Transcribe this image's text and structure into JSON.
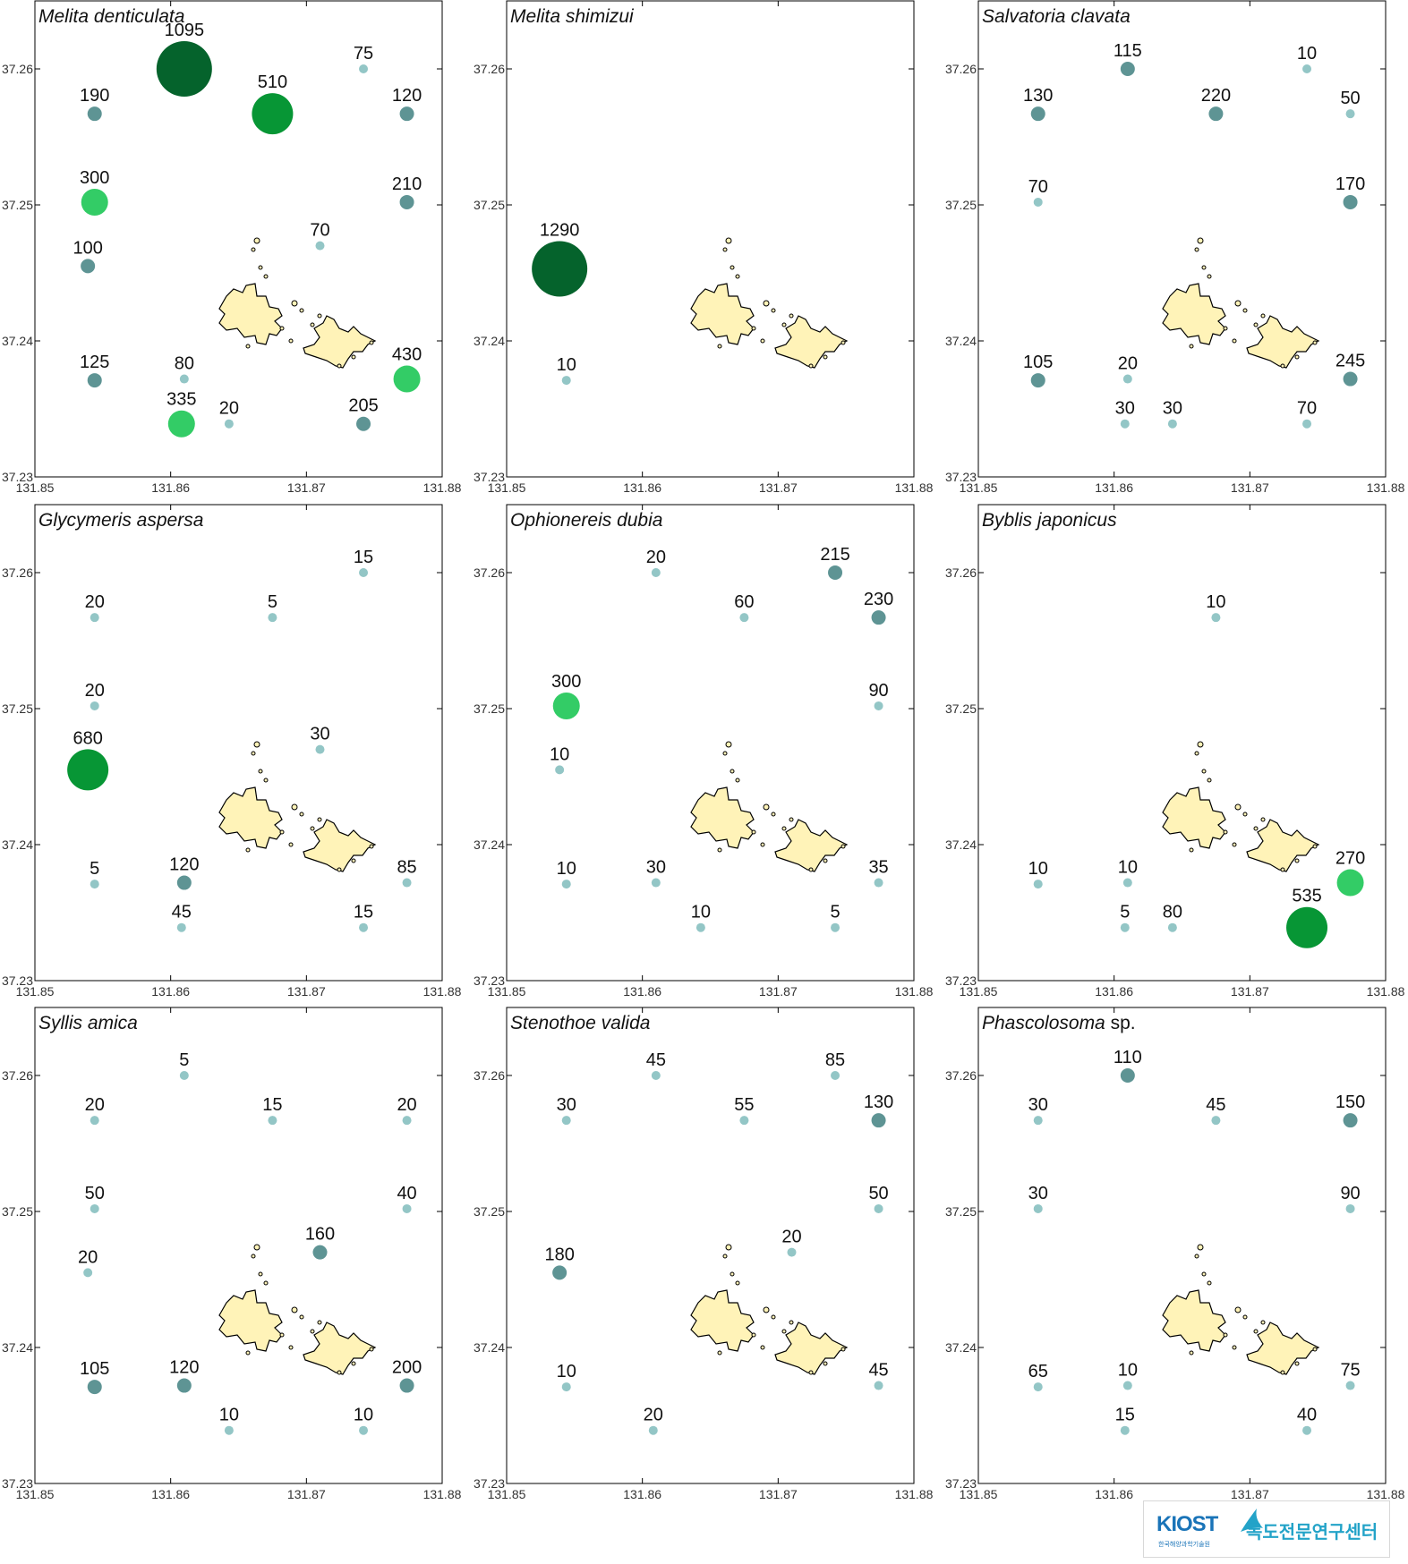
{
  "figure": {
    "colors": {
      "frame": "#000000",
      "island_fill": "#fff3b8",
      "island_stroke": "#000000",
      "size_classes": [
        {
          "min": 0,
          "max": 99,
          "radius": 5,
          "color": "#93c6c6"
        },
        {
          "min": 100,
          "max": 250,
          "radius": 8,
          "color": "#5e9494"
        },
        {
          "min": 251,
          "max": 450,
          "radius": 15,
          "color": "#33cc66"
        },
        {
          "min": 451,
          "max": 800,
          "radius": 23,
          "color": "#079635"
        },
        {
          "min": 801,
          "max": 5000,
          "radius": 31,
          "color": "#05632c"
        }
      ]
    }
  },
  "logo": {
    "name": "KIOST",
    "subtitle": "한국해양과학기술원",
    "korean": "독도전문연구센터",
    "icon": "kiost-wave-icon"
  },
  "chart_data": [
    {
      "type": "scatter",
      "title": "Melita denticulata",
      "xlim": [
        131.85,
        131.88
      ],
      "ylim": [
        37.23,
        37.265
      ],
      "xticks": [
        "131.85",
        "131.86",
        "131.87",
        "131.88"
      ],
      "yticks": [
        "37.23",
        "37.24",
        "37.25",
        "37.26"
      ],
      "points": [
        {
          "x": 131.861,
          "y": 37.26,
          "value": 1095,
          "label": "1095"
        },
        {
          "x": 131.8675,
          "y": 37.2567,
          "value": 510,
          "label": "510"
        },
        {
          "x": 131.8742,
          "y": 37.26,
          "value": 75,
          "label": "75"
        },
        {
          "x": 131.8544,
          "y": 37.2567,
          "value": 190,
          "label": "190"
        },
        {
          "x": 131.8774,
          "y": 37.2567,
          "value": 120,
          "label": "120"
        },
        {
          "x": 131.8544,
          "y": 37.2502,
          "value": 300,
          "label": "300"
        },
        {
          "x": 131.8774,
          "y": 37.2502,
          "value": 210,
          "label": "210"
        },
        {
          "x": 131.871,
          "y": 37.247,
          "value": 70,
          "label": "70"
        },
        {
          "x": 131.8539,
          "y": 37.2455,
          "value": 100,
          "label": "100"
        },
        {
          "x": 131.8544,
          "y": 37.2371,
          "value": 125,
          "label": "125"
        },
        {
          "x": 131.861,
          "y": 37.2372,
          "value": 80,
          "label": "80"
        },
        {
          "x": 131.8774,
          "y": 37.2372,
          "value": 430,
          "label": "430"
        },
        {
          "x": 131.8608,
          "y": 37.2339,
          "value": 335,
          "label": "335"
        },
        {
          "x": 131.8643,
          "y": 37.2339,
          "value": 20,
          "label": "20"
        },
        {
          "x": 131.8742,
          "y": 37.2339,
          "value": 205,
          "label": "205"
        }
      ]
    },
    {
      "type": "scatter",
      "title": "Melita shimizui",
      "xlim": [
        131.85,
        131.88
      ],
      "ylim": [
        37.23,
        37.265
      ],
      "xticks": [
        "131.85",
        "131.86",
        "131.87",
        "131.88"
      ],
      "yticks": [
        "37.23",
        "37.24",
        "37.25",
        "37.26"
      ],
      "points": [
        {
          "x": 131.8539,
          "y": 37.2453,
          "value": 1290,
          "label": "1290"
        },
        {
          "x": 131.8544,
          "y": 37.2371,
          "value": 10,
          "label": "10"
        }
      ]
    },
    {
      "type": "scatter",
      "title": "Salvatoria clavata",
      "xlim": [
        131.85,
        131.88
      ],
      "ylim": [
        37.23,
        37.265
      ],
      "xticks": [
        "131.85",
        "131.86",
        "131.87",
        "131.88"
      ],
      "yticks": [
        "37.23",
        "37.24",
        "37.25",
        "37.26"
      ],
      "points": [
        {
          "x": 131.861,
          "y": 37.26,
          "value": 115,
          "label": "115"
        },
        {
          "x": 131.8742,
          "y": 37.26,
          "value": 10,
          "label": "10"
        },
        {
          "x": 131.8544,
          "y": 37.2567,
          "value": 130,
          "label": "130"
        },
        {
          "x": 131.8675,
          "y": 37.2567,
          "value": 220,
          "label": "220"
        },
        {
          "x": 131.8774,
          "y": 37.2567,
          "value": 50,
          "label": "50"
        },
        {
          "x": 131.8544,
          "y": 37.2502,
          "value": 70,
          "label": "70"
        },
        {
          "x": 131.8774,
          "y": 37.2502,
          "value": 170,
          "label": "170"
        },
        {
          "x": 131.8544,
          "y": 37.2371,
          "value": 105,
          "label": "105"
        },
        {
          "x": 131.861,
          "y": 37.2372,
          "value": 20,
          "label": "20"
        },
        {
          "x": 131.8774,
          "y": 37.2372,
          "value": 245,
          "label": "245"
        },
        {
          "x": 131.8608,
          "y": 37.2339,
          "value": 30,
          "label": "30"
        },
        {
          "x": 131.8643,
          "y": 37.2339,
          "value": 30,
          "label": "30"
        },
        {
          "x": 131.8742,
          "y": 37.2339,
          "value": 70,
          "label": "70"
        }
      ]
    },
    {
      "type": "scatter",
      "title": "Glycymeris aspersa",
      "xlim": [
        131.85,
        131.88
      ],
      "ylim": [
        37.23,
        37.265
      ],
      "xticks": [
        "131.85",
        "131.86",
        "131.87",
        "131.88"
      ],
      "yticks": [
        "37.23",
        "37.24",
        "37.25",
        "37.26"
      ],
      "points": [
        {
          "x": 131.8742,
          "y": 37.26,
          "value": 15,
          "label": "15"
        },
        {
          "x": 131.8544,
          "y": 37.2567,
          "value": 20,
          "label": "20"
        },
        {
          "x": 131.8675,
          "y": 37.2567,
          "value": 5,
          "label": "5"
        },
        {
          "x": 131.8544,
          "y": 37.2502,
          "value": 20,
          "label": "20"
        },
        {
          "x": 131.871,
          "y": 37.247,
          "value": 30,
          "label": "30"
        },
        {
          "x": 131.8539,
          "y": 37.2455,
          "value": 680,
          "label": "680"
        },
        {
          "x": 131.8544,
          "y": 37.2371,
          "value": 5,
          "label": "5"
        },
        {
          "x": 131.861,
          "y": 37.2372,
          "value": 120,
          "label": "120"
        },
        {
          "x": 131.8774,
          "y": 37.2372,
          "value": 85,
          "label": "85"
        },
        {
          "x": 131.8608,
          "y": 37.2339,
          "value": 45,
          "label": "45"
        },
        {
          "x": 131.8742,
          "y": 37.2339,
          "value": 15,
          "label": "15"
        }
      ]
    },
    {
      "type": "scatter",
      "title": "Ophionereis dubia",
      "xlim": [
        131.85,
        131.88
      ],
      "ylim": [
        37.23,
        37.265
      ],
      "xticks": [
        "131.85",
        "131.86",
        "131.87",
        "131.88"
      ],
      "yticks": [
        "37.23",
        "37.24",
        "37.25",
        "37.26"
      ],
      "points": [
        {
          "x": 131.861,
          "y": 37.26,
          "value": 20,
          "label": "20"
        },
        {
          "x": 131.8742,
          "y": 37.26,
          "value": 215,
          "label": "215"
        },
        {
          "x": 131.8675,
          "y": 37.2567,
          "value": 60,
          "label": "60"
        },
        {
          "x": 131.8774,
          "y": 37.2567,
          "value": 230,
          "label": "230"
        },
        {
          "x": 131.8544,
          "y": 37.2502,
          "value": 300,
          "label": "300"
        },
        {
          "x": 131.8774,
          "y": 37.2502,
          "value": 90,
          "label": "90"
        },
        {
          "x": 131.8539,
          "y": 37.2455,
          "value": 10,
          "label": "10"
        },
        {
          "x": 131.8544,
          "y": 37.2371,
          "value": 10,
          "label": "10"
        },
        {
          "x": 131.861,
          "y": 37.2372,
          "value": 30,
          "label": "30"
        },
        {
          "x": 131.8774,
          "y": 37.2372,
          "value": 35,
          "label": "35"
        },
        {
          "x": 131.8643,
          "y": 37.2339,
          "value": 10,
          "label": "10"
        },
        {
          "x": 131.8742,
          "y": 37.2339,
          "value": 5,
          "label": "5"
        }
      ]
    },
    {
      "type": "scatter",
      "title": "Byblis japonicus",
      "xlim": [
        131.85,
        131.88
      ],
      "ylim": [
        37.23,
        37.265
      ],
      "xticks": [
        "131.85",
        "131.86",
        "131.87",
        "131.88"
      ],
      "yticks": [
        "37.23",
        "37.24",
        "37.25",
        "37.26"
      ],
      "points": [
        {
          "x": 131.8675,
          "y": 37.2567,
          "value": 10,
          "label": "10"
        },
        {
          "x": 131.8544,
          "y": 37.2371,
          "value": 10,
          "label": "10"
        },
        {
          "x": 131.861,
          "y": 37.2372,
          "value": 10,
          "label": "10"
        },
        {
          "x": 131.8774,
          "y": 37.2372,
          "value": 270,
          "label": "270"
        },
        {
          "x": 131.8608,
          "y": 37.2339,
          "value": 5,
          "label": "5"
        },
        {
          "x": 131.8643,
          "y": 37.2339,
          "value": 80,
          "label": "80"
        },
        {
          "x": 131.8742,
          "y": 37.2339,
          "value": 535,
          "label": "535"
        }
      ]
    },
    {
      "type": "scatter",
      "title": "Syllis amica",
      "xlim": [
        131.85,
        131.88
      ],
      "ylim": [
        37.23,
        37.265
      ],
      "xticks": [
        "131.85",
        "131.86",
        "131.87",
        "131.88"
      ],
      "yticks": [
        "37.23",
        "37.24",
        "37.25",
        "37.26"
      ],
      "points": [
        {
          "x": 131.861,
          "y": 37.26,
          "value": 5,
          "label": "5"
        },
        {
          "x": 131.8544,
          "y": 37.2567,
          "value": 20,
          "label": "20"
        },
        {
          "x": 131.8675,
          "y": 37.2567,
          "value": 15,
          "label": "15"
        },
        {
          "x": 131.8774,
          "y": 37.2567,
          "value": 20,
          "label": "20"
        },
        {
          "x": 131.8544,
          "y": 37.2502,
          "value": 50,
          "label": "50"
        },
        {
          "x": 131.8774,
          "y": 37.2502,
          "value": 40,
          "label": "40"
        },
        {
          "x": 131.871,
          "y": 37.247,
          "value": 160,
          "label": "160"
        },
        {
          "x": 131.8539,
          "y": 37.2455,
          "value": 20,
          "label": "20"
        },
        {
          "x": 131.8544,
          "y": 37.2371,
          "value": 105,
          "label": "105"
        },
        {
          "x": 131.861,
          "y": 37.2372,
          "value": 120,
          "label": "120"
        },
        {
          "x": 131.8774,
          "y": 37.2372,
          "value": 200,
          "label": "200"
        },
        {
          "x": 131.8643,
          "y": 37.2339,
          "value": 10,
          "label": "10"
        },
        {
          "x": 131.8742,
          "y": 37.2339,
          "value": 10,
          "label": "10"
        }
      ]
    },
    {
      "type": "scatter",
      "title": "Stenothoe valida",
      "xlim": [
        131.85,
        131.88
      ],
      "ylim": [
        37.23,
        37.265
      ],
      "xticks": [
        "131.85",
        "131.86",
        "131.87",
        "131.88"
      ],
      "yticks": [
        "37.23",
        "37.24",
        "37.25",
        "37.26"
      ],
      "points": [
        {
          "x": 131.861,
          "y": 37.26,
          "value": 45,
          "label": "45"
        },
        {
          "x": 131.8742,
          "y": 37.26,
          "value": 85,
          "label": "85"
        },
        {
          "x": 131.8544,
          "y": 37.2567,
          "value": 30,
          "label": "30"
        },
        {
          "x": 131.8675,
          "y": 37.2567,
          "value": 55,
          "label": "55"
        },
        {
          "x": 131.8774,
          "y": 37.2567,
          "value": 130,
          "label": "130"
        },
        {
          "x": 131.8774,
          "y": 37.2502,
          "value": 50,
          "label": "50"
        },
        {
          "x": 131.871,
          "y": 37.247,
          "value": 20,
          "label": "20"
        },
        {
          "x": 131.8539,
          "y": 37.2455,
          "value": 180,
          "label": "180"
        },
        {
          "x": 131.8544,
          "y": 37.2371,
          "value": 10,
          "label": "10"
        },
        {
          "x": 131.8774,
          "y": 37.2372,
          "value": 45,
          "label": "45"
        },
        {
          "x": 131.8608,
          "y": 37.2339,
          "value": 20,
          "label": "20"
        }
      ]
    },
    {
      "type": "scatter",
      "title": "Phascolosoma",
      "title_suffix": " sp.",
      "xlim": [
        131.85,
        131.88
      ],
      "ylim": [
        37.23,
        37.265
      ],
      "xticks": [
        "131.85",
        "131.86",
        "131.87",
        "131.88"
      ],
      "yticks": [
        "37.23",
        "37.24",
        "37.25",
        "37.26"
      ],
      "points": [
        {
          "x": 131.861,
          "y": 37.26,
          "value": 110,
          "label": "110"
        },
        {
          "x": 131.8544,
          "y": 37.2567,
          "value": 30,
          "label": "30"
        },
        {
          "x": 131.8675,
          "y": 37.2567,
          "value": 45,
          "label": "45"
        },
        {
          "x": 131.8774,
          "y": 37.2567,
          "value": 150,
          "label": "150"
        },
        {
          "x": 131.8544,
          "y": 37.2502,
          "value": 30,
          "label": "30"
        },
        {
          "x": 131.8774,
          "y": 37.2502,
          "value": 90,
          "label": "90"
        },
        {
          "x": 131.8544,
          "y": 37.2371,
          "value": 65,
          "label": "65"
        },
        {
          "x": 131.861,
          "y": 37.2372,
          "value": 10,
          "label": "10"
        },
        {
          "x": 131.8774,
          "y": 37.2372,
          "value": 75,
          "label": "75"
        },
        {
          "x": 131.8608,
          "y": 37.2339,
          "value": 15,
          "label": "15"
        },
        {
          "x": 131.8742,
          "y": 37.2339,
          "value": 40,
          "label": "40"
        }
      ]
    }
  ]
}
